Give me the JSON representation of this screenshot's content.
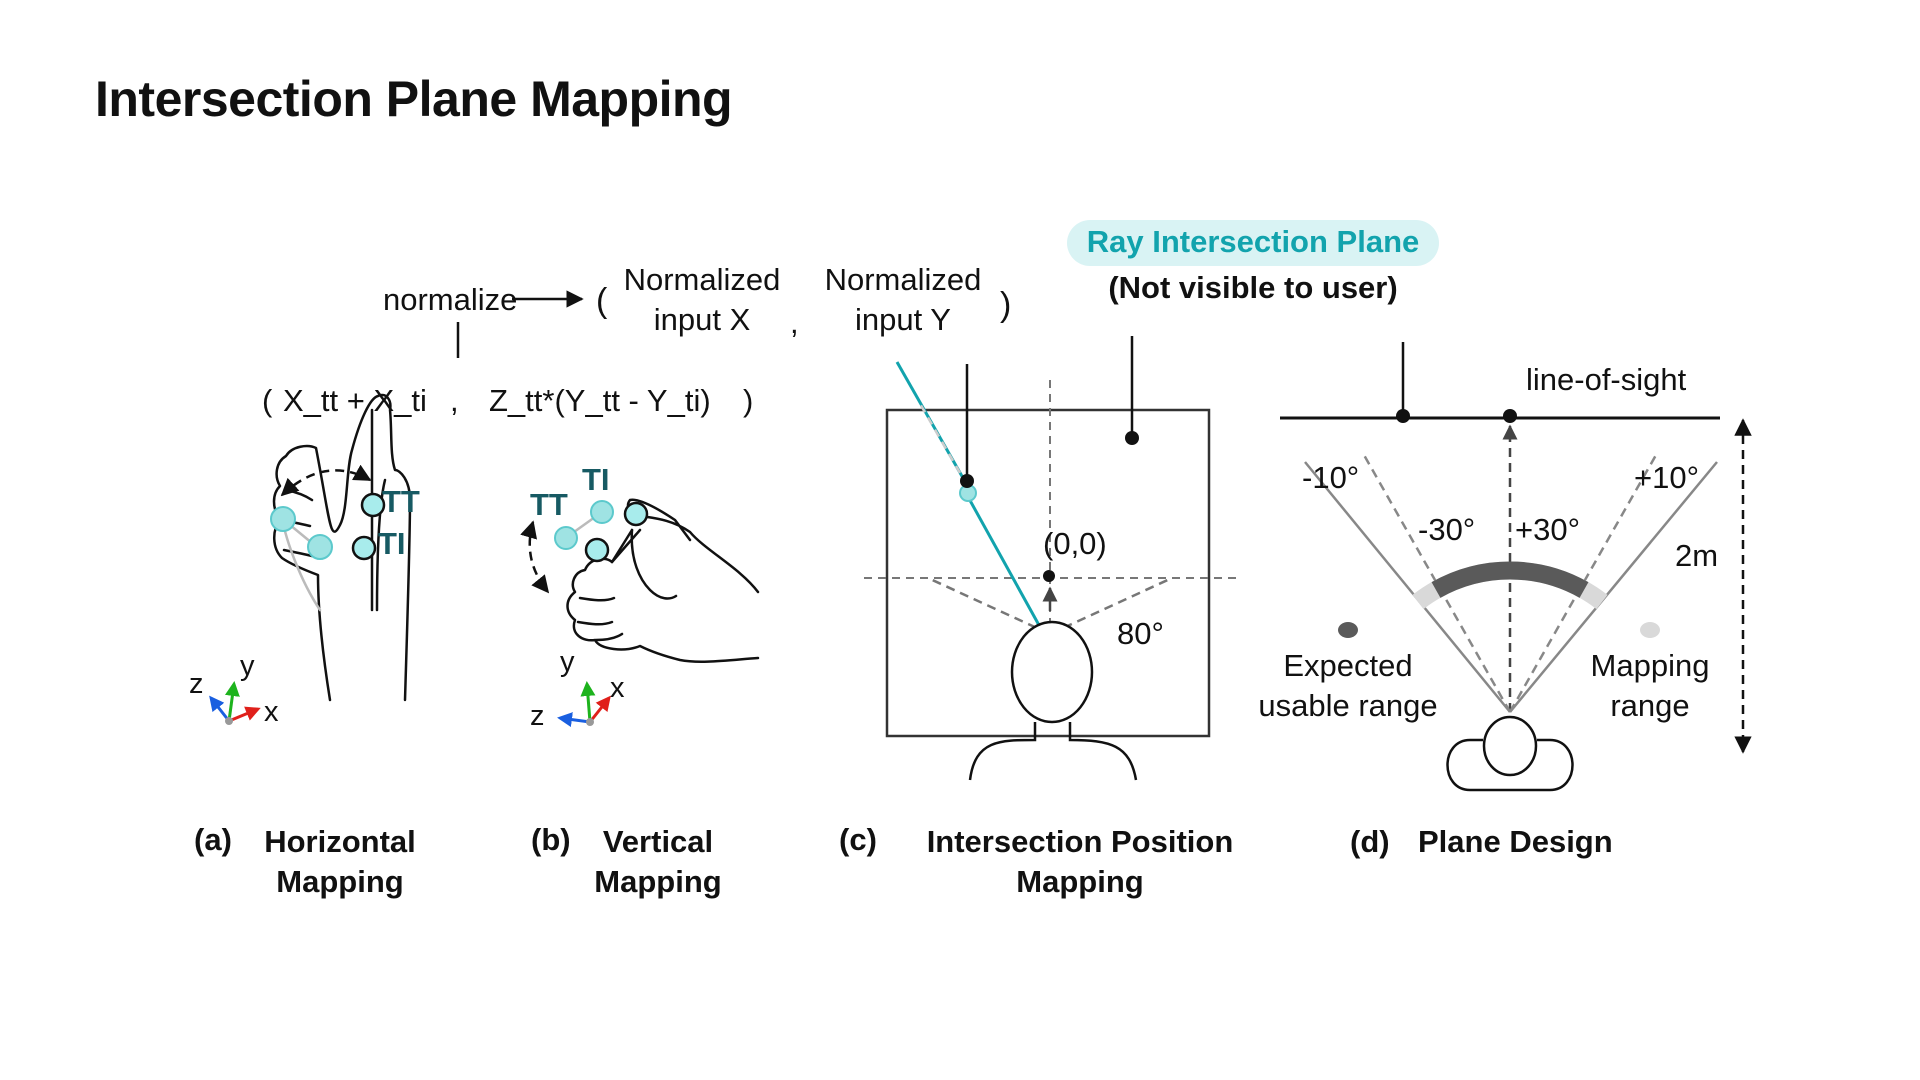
{
  "title": "Intersection Plane Mapping",
  "formula": {
    "normalize": "normalize",
    "open_paren": "(",
    "close_paren": ")",
    "comma": ",",
    "norm_x_line1": "Normalized",
    "norm_x_line2": "input X",
    "norm_y_line1": "Normalized",
    "norm_y_line2": "input Y",
    "expr_open": "(",
    "expr_x": "X_tt + X_ti",
    "expr_comma": ",",
    "expr_z": "Z_tt*(Y_tt  - Y_ti)",
    "expr_close": ")"
  },
  "plane_label": {
    "name": "Ray Intersection Plane",
    "note": "(Not visible to user)"
  },
  "panel_a": {
    "tt": "TT",
    "ti": "TI",
    "axis_z": "z",
    "axis_y": "y",
    "axis_x": "x",
    "letter": "(a)",
    "caption_line1": "Horizontal",
    "caption_line2": "Mapping"
  },
  "panel_b": {
    "tt": "TT",
    "ti": "TI",
    "axis_z": "z",
    "axis_y": "y",
    "axis_x": "x",
    "letter": "(b)",
    "caption_line1": "Vertical",
    "caption_line2": "Mapping"
  },
  "panel_c": {
    "origin": "(0,0)",
    "fov": "80°",
    "letter": "(c)",
    "caption_line1": "Intersection Position",
    "caption_line2": "Mapping"
  },
  "panel_d": {
    "line_of_sight": "line-of-sight",
    "minus10": "-10°",
    "plus10": "+10°",
    "minus30": "-30°",
    "plus30": "+30°",
    "distance": "2m",
    "expected_line1": "Expected",
    "expected_line2": "usable range",
    "mapping_line1": "Mapping",
    "mapping_line2": "range",
    "letter": "(d)",
    "caption": "Plane Design"
  },
  "colors": {
    "teal": "#12a3ad",
    "teal_fill": "#9fe3e3",
    "dark_teal": "#175a63",
    "axis_x": "#e0201b",
    "axis_y": "#1db31d",
    "axis_z": "#1a5fe0",
    "usable_range": "#5a5a5a",
    "mapping_range": "#d9d9d9"
  }
}
